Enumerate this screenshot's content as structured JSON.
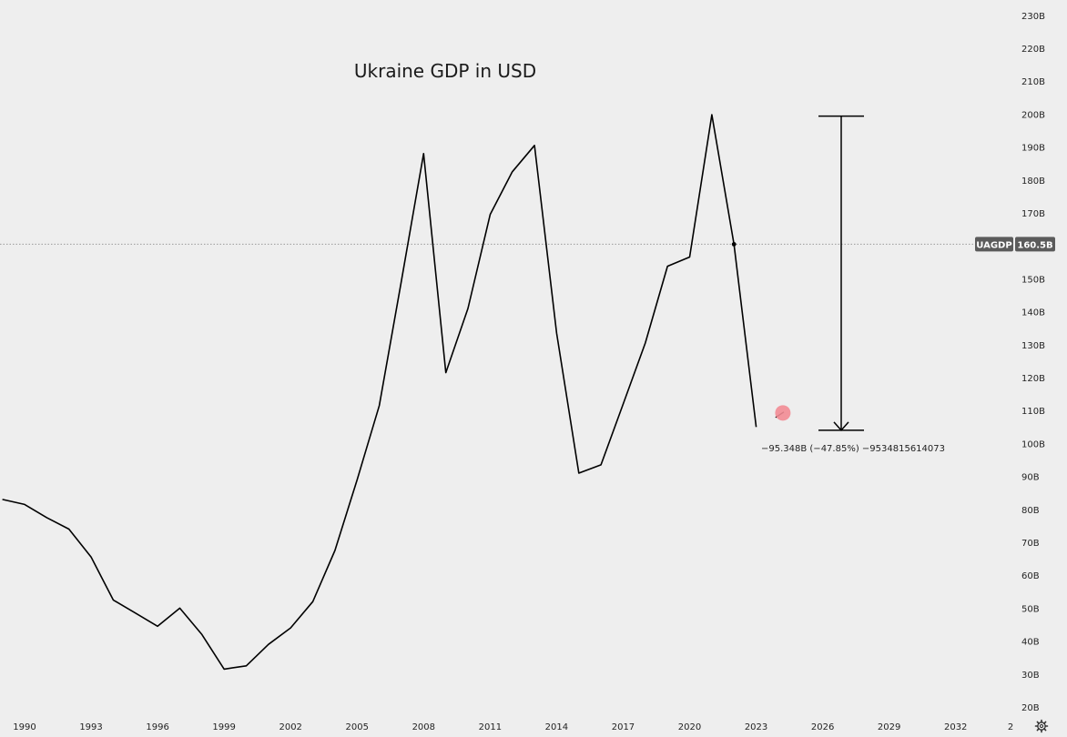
{
  "chart_data": {
    "type": "line",
    "title": "Ukraine GDP in USD",
    "xlabel": "",
    "ylabel": "",
    "x_range": [
      1990,
      2033
    ],
    "ylim": [
      20,
      230
    ],
    "y_unit_suffix": "B",
    "y_ticks": [
      20,
      30,
      40,
      50,
      60,
      70,
      80,
      90,
      100,
      110,
      120,
      130,
      140,
      150,
      160,
      170,
      180,
      190,
      200,
      210,
      220,
      230
    ],
    "y_tick_labels": [
      "20B",
      "30B",
      "40B",
      "50B",
      "60B",
      "70B",
      "80B",
      "90B",
      "100B",
      "110B",
      "120B",
      "130B",
      "140B",
      "150B",
      "160B",
      "170B",
      "180B",
      "190B",
      "200B",
      "210B",
      "220B",
      "230B"
    ],
    "x_ticks": [
      1990,
      1993,
      1996,
      1999,
      2002,
      2005,
      2008,
      2011,
      2014,
      2017,
      2020,
      2023,
      2026,
      2029,
      2032
    ],
    "x_tick_labels": [
      "1990",
      "1993",
      "1996",
      "1999",
      "2002",
      "2005",
      "2008",
      "2011",
      "2014",
      "2017",
      "2020",
      "2023",
      "2026",
      "2029",
      "2032"
    ],
    "x_tick_cut_label": "2",
    "grid": false,
    "series": [
      {
        "symbol": "UAGDP",
        "x": [
          1989,
          1990,
          1991,
          1992,
          1993,
          1994,
          1995,
          1996,
          1997,
          1998,
          1999,
          2000,
          2001,
          2002,
          2003,
          2004,
          2005,
          2006,
          2007,
          2008,
          2009,
          2010,
          2011,
          2012,
          2013,
          2014,
          2015,
          2016,
          2017,
          2018,
          2019,
          2020,
          2021,
          2022,
          2023
        ],
        "values": [
          83,
          81.5,
          77.5,
          74,
          65.5,
          52.5,
          48.5,
          44.5,
          50,
          42,
          31.5,
          32.5,
          39,
          44,
          52,
          67.5,
          89,
          111.5,
          149.5,
          188,
          121.5,
          141,
          169.5,
          182.5,
          190.5,
          133.5,
          91,
          93.5,
          112,
          130.5,
          153.8,
          156.6,
          199.8,
          160.5,
          105
        ]
      }
    ],
    "current_value": {
      "symbol": "UAGDP",
      "value_label": "160.5B",
      "value": 160.5
    },
    "measurement": {
      "from_value": 199.4,
      "to_value": 104,
      "text": "−95.348B (−47.85%) −95348156140​73"
    },
    "cursor_marker": {
      "x": 2024,
      "value": 109,
      "color": "#f28b94"
    }
  },
  "ui": {
    "settings_icon": "gear-icon"
  }
}
